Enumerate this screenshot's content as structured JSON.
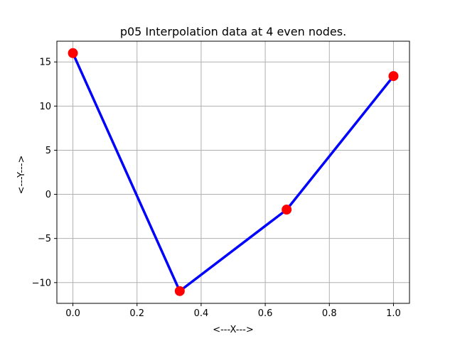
{
  "chart_data": {
    "type": "line",
    "title": "p05 Interpolation data at 4 even nodes.",
    "xlabel": "<---X--->",
    "ylabel": "<---Y--->",
    "xlim": [
      -0.05,
      1.05
    ],
    "ylim": [
      -12.35,
      17.35
    ],
    "xticks": [
      0.0,
      0.2,
      0.4,
      0.6,
      0.8,
      1.0
    ],
    "xtick_labels": [
      "0.0",
      "0.2",
      "0.4",
      "0.6",
      "0.8",
      "1.0"
    ],
    "yticks": [
      -10,
      -5,
      0,
      5,
      10,
      15
    ],
    "ytick_labels": [
      "−10",
      "−5",
      "0",
      "5",
      "10",
      "15"
    ],
    "grid": true,
    "series": [
      {
        "x": [
          0.0,
          0.3333,
          0.6667,
          1.0
        ],
        "y": [
          16.0,
          -10.96,
          -1.73,
          13.4
        ],
        "line_color": "#0000ff",
        "marker_color": "#ff0000",
        "marker": "circle"
      }
    ]
  }
}
